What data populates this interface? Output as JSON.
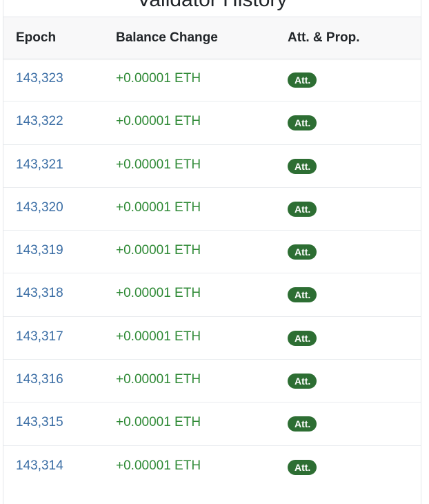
{
  "card": {
    "title": "Validator History"
  },
  "table": {
    "headers": {
      "epoch": "Epoch",
      "balance_change": "Balance Change",
      "att_prop": "Att. & Prop."
    },
    "rows": [
      {
        "epoch": "143,323",
        "balance_change": "+0.00001 ETH",
        "badge": "Att."
      },
      {
        "epoch": "143,322",
        "balance_change": "+0.00001 ETH",
        "badge": "Att."
      },
      {
        "epoch": "143,321",
        "balance_change": "+0.00001 ETH",
        "badge": "Att."
      },
      {
        "epoch": "143,320",
        "balance_change": "+0.00001 ETH",
        "badge": "Att."
      },
      {
        "epoch": "143,319",
        "balance_change": "+0.00001 ETH",
        "badge": "Att."
      },
      {
        "epoch": "143,318",
        "balance_change": "+0.00001 ETH",
        "badge": "Att."
      },
      {
        "epoch": "143,317",
        "balance_change": "+0.00001 ETH",
        "badge": "Att."
      },
      {
        "epoch": "143,316",
        "balance_change": "+0.00001 ETH",
        "badge": "Att."
      },
      {
        "epoch": "143,315",
        "balance_change": "+0.00001 ETH",
        "badge": "Att."
      },
      {
        "epoch": "143,314",
        "balance_change": "+0.00001 ETH",
        "badge": "Att."
      }
    ]
  },
  "colors": {
    "epoch_link": "#3b6ea5",
    "balance_positive": "#2f8a36",
    "badge_bg": "#2d6e33",
    "header_bg": "#f8f8f9"
  }
}
